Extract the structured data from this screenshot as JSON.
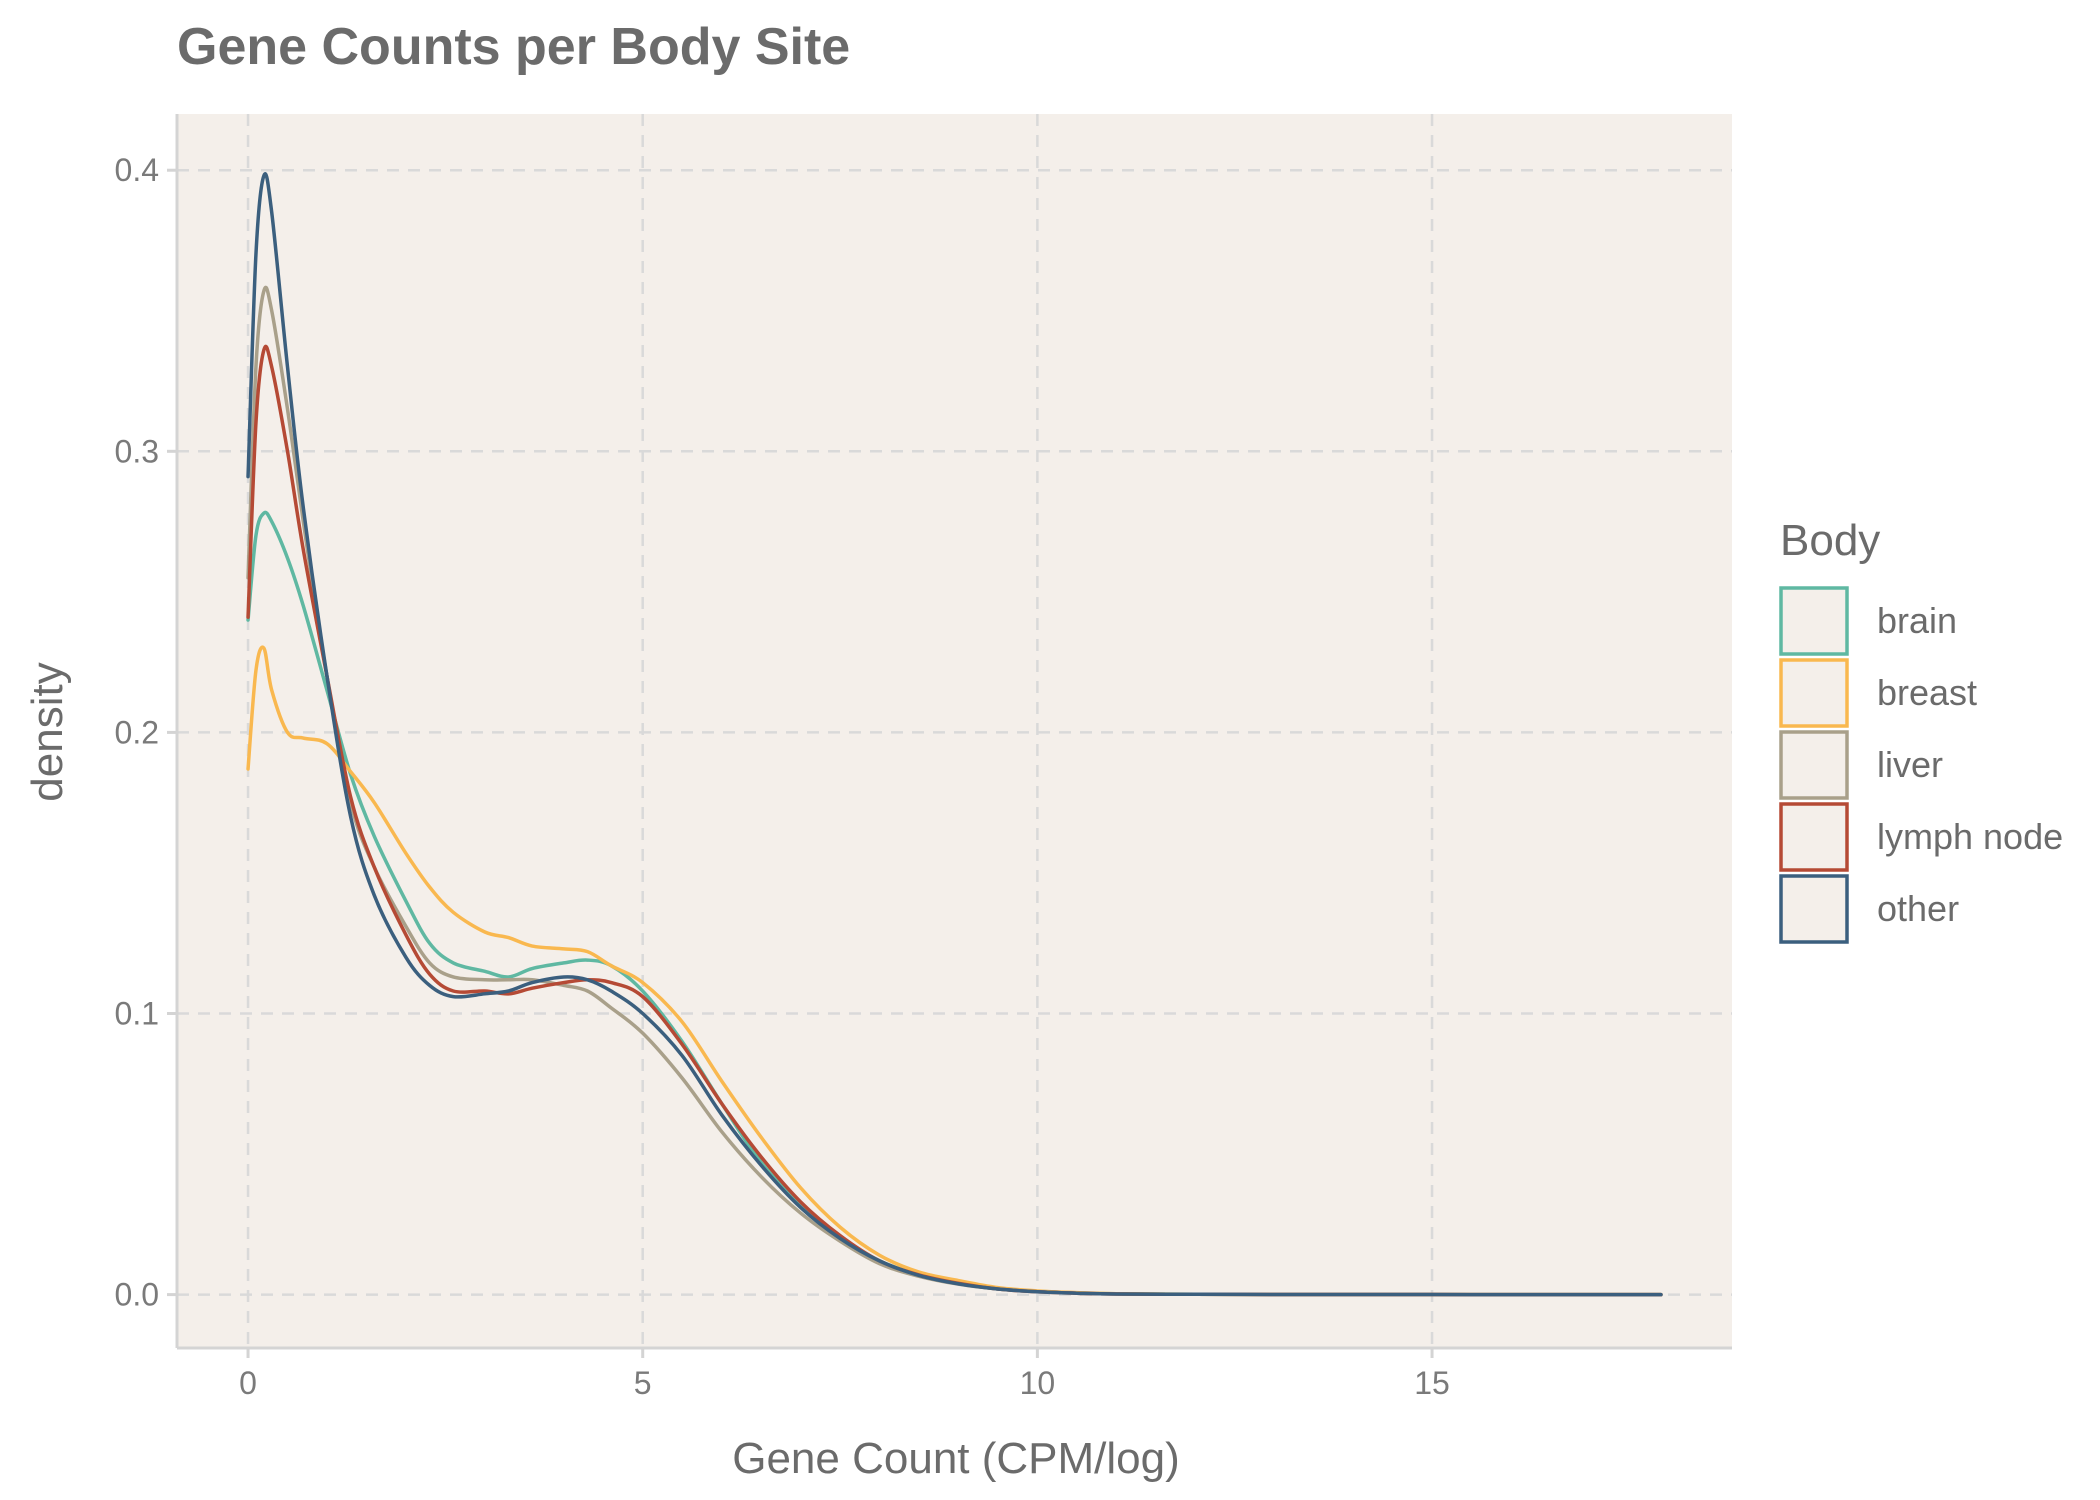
{
  "chart_data": {
    "type": "line",
    "title": "Gene Counts per Body Site",
    "xlabel": "Gene Count (CPM/log)",
    "ylabel": "density",
    "xlim": [
      -0.9,
      18.8
    ],
    "ylim": [
      -0.019,
      0.42
    ],
    "x_ticks": [
      0,
      5,
      10,
      15
    ],
    "x_tick_labels": [
      "0",
      "5",
      "10",
      "15"
    ],
    "y_ticks": [
      0.0,
      0.1,
      0.2,
      0.3,
      0.4
    ],
    "y_tick_labels": [
      "0.0",
      "0.1",
      "0.2",
      "0.3",
      "0.4"
    ],
    "grid": true,
    "background": "#f4efea",
    "legend": {
      "title": "Body",
      "position": "right"
    },
    "x": [
      0,
      0.1,
      0.2,
      0.3,
      0.5,
      0.7,
      1.0,
      1.3,
      1.6,
      2.0,
      2.3,
      2.6,
      3.0,
      3.3,
      3.6,
      4.0,
      4.3,
      4.6,
      5.0,
      5.5,
      6.0,
      6.5,
      7.0,
      7.5,
      8.0,
      8.5,
      9.0,
      9.5,
      10.0,
      10.5,
      11.0,
      12.0,
      13.0,
      14.0,
      15.0,
      16.0,
      17.0,
      17.9
    ],
    "series": [
      {
        "name": "brain",
        "color": "#5fb8a2",
        "values": [
          0.24,
          0.27,
          0.278,
          0.275,
          0.262,
          0.245,
          0.215,
          0.185,
          0.163,
          0.14,
          0.125,
          0.118,
          0.115,
          0.113,
          0.116,
          0.118,
          0.119,
          0.117,
          0.108,
          0.09,
          0.068,
          0.047,
          0.032,
          0.02,
          0.012,
          0.007,
          0.004,
          0.002,
          0.0012,
          0.0006,
          0.0003,
          0.0001,
          5e-05,
          2e-05,
          1e-05,
          0.0,
          0.0,
          0.0
        ]
      },
      {
        "name": "breast",
        "color": "#f9b84f",
        "values": [
          0.187,
          0.222,
          0.23,
          0.215,
          0.2,
          0.198,
          0.196,
          0.186,
          0.175,
          0.157,
          0.145,
          0.136,
          0.129,
          0.127,
          0.124,
          0.123,
          0.122,
          0.117,
          0.111,
          0.097,
          0.076,
          0.056,
          0.038,
          0.024,
          0.014,
          0.008,
          0.005,
          0.0025,
          0.0013,
          0.0007,
          0.0003,
          0.0001,
          5e-05,
          2e-05,
          1e-05,
          0.0,
          0.0,
          0.0
        ]
      },
      {
        "name": "liver",
        "color": "#a9a08a",
        "values": [
          0.255,
          0.33,
          0.357,
          0.35,
          0.315,
          0.275,
          0.22,
          0.175,
          0.152,
          0.131,
          0.118,
          0.113,
          0.112,
          0.112,
          0.112,
          0.11,
          0.108,
          0.102,
          0.093,
          0.077,
          0.058,
          0.042,
          0.029,
          0.019,
          0.011,
          0.0065,
          0.0037,
          0.002,
          0.001,
          0.0005,
          0.0002,
          0.0001,
          4e-05,
          2e-05,
          1e-05,
          0.0,
          0.0,
          0.0
        ]
      },
      {
        "name": "lymph node",
        "color": "#b54a35",
        "values": [
          0.241,
          0.31,
          0.336,
          0.33,
          0.3,
          0.265,
          0.22,
          0.177,
          0.152,
          0.128,
          0.114,
          0.108,
          0.108,
          0.107,
          0.109,
          0.111,
          0.112,
          0.111,
          0.106,
          0.089,
          0.068,
          0.049,
          0.033,
          0.021,
          0.012,
          0.007,
          0.004,
          0.002,
          0.001,
          0.0005,
          0.0002,
          0.0001,
          4e-05,
          2e-05,
          1e-05,
          0.0,
          0.0,
          0.0
        ]
      },
      {
        "name": "other",
        "color": "#3b5f7e",
        "values": [
          0.291,
          0.37,
          0.398,
          0.385,
          0.33,
          0.28,
          0.22,
          0.17,
          0.142,
          0.12,
          0.11,
          0.106,
          0.107,
          0.108,
          0.111,
          0.113,
          0.112,
          0.108,
          0.1,
          0.085,
          0.064,
          0.046,
          0.031,
          0.02,
          0.012,
          0.0068,
          0.0038,
          0.002,
          0.001,
          0.0005,
          0.0002,
          0.0001,
          4e-05,
          2e-05,
          1e-05,
          0.0,
          0.0,
          0.0
        ]
      }
    ]
  }
}
